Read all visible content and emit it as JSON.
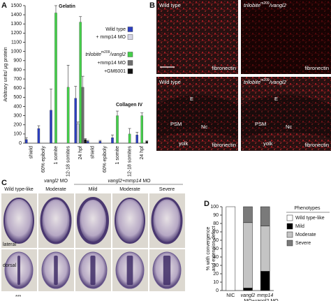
{
  "panel_letters": [
    "A",
    "B",
    "C",
    "D"
  ],
  "chart_data": [
    {
      "type": "bar",
      "stacked": false,
      "annotations": [
        "Gelatin",
        "Collagen IV"
      ],
      "y_label": "Arbitrary units/ μg protein",
      "categories": [
        "shield",
        "60% epiboly",
        "1 somite",
        "12-18 somites",
        "24 hpf",
        "shield",
        "60% epiboly",
        "1 somite",
        "12-18 somites",
        "24 hpf"
      ],
      "series": [
        {
          "name": [
            "Wild type"
          ],
          "color": "#2c3fc0",
          "values": [
            40,
            160,
            360,
            null,
            490,
            20,
            20,
            60,
            null,
            90
          ],
          "errors": [
            20,
            30,
            230,
            null,
            130,
            10,
            10,
            30,
            null,
            30
          ]
        },
        {
          "name": [
            "+ mmp14 MO"
          ],
          "color": "#d6d6e6",
          "values": [
            null,
            null,
            null,
            null,
            210,
            null,
            null,
            null,
            null,
            null
          ],
          "errors": [
            null,
            null,
            null,
            null,
            20,
            null,
            null,
            null,
            null,
            null
          ]
        },
        {
          "name": [
            "trilobite",
            "m209",
            "/vangl2"
          ],
          "color": "#45d04b",
          "values": [
            null,
            null,
            1420,
            610,
            1320,
            null,
            null,
            300,
            100,
            300
          ],
          "errors": [
            null,
            null,
            80,
            240,
            60,
            null,
            null,
            50,
            60,
            30
          ]
        },
        {
          "name": [
            "+mmp14 MO"
          ],
          "color": "#6e6e6e",
          "values": [
            null,
            null,
            null,
            null,
            610,
            null,
            null,
            null,
            null,
            null
          ],
          "errors": [
            null,
            null,
            null,
            null,
            120,
            null,
            null,
            null,
            null,
            null
          ]
        },
        {
          "name": [
            "+GM6001"
          ],
          "color": "#111111",
          "values": [
            null,
            null,
            null,
            null,
            40,
            null,
            null,
            null,
            null,
            20
          ],
          "errors": [
            null,
            null,
            null,
            null,
            10,
            null,
            null,
            null,
            null,
            5
          ]
        }
      ],
      "ylim": [
        0,
        1500
      ],
      "yticks": [
        0,
        100,
        200,
        300,
        400,
        500,
        600,
        700,
        800,
        900,
        1000,
        1100,
        1200,
        1300,
        1400,
        1500
      ]
    },
    {
      "type": "bar",
      "stacked": true,
      "y_label": [
        "% with convergence",
        "and extension defect"
      ],
      "categories": [
        [
          "NIC"
        ],
        [
          "vangl2",
          "MO"
        ],
        [
          "mmp14",
          "+vangl2 MO"
        ]
      ],
      "legend_title": "Phenotypes",
      "series": [
        {
          "name": [
            "Wild type-like"
          ],
          "color": "#ffffff",
          "values": [
            100,
            null,
            null
          ]
        },
        {
          "name": [
            "Mild"
          ],
          "color": "#000000",
          "values": [
            null,
            3,
            23
          ]
        },
        {
          "name": [
            "Moderate"
          ],
          "color": "#c4c4c4",
          "values": [
            null,
            78,
            54
          ]
        },
        {
          "name": [
            "Severe"
          ],
          "color": "#7a7a7a",
          "values": [
            null,
            19,
            23
          ]
        }
      ],
      "ylim": [
        0,
        100
      ],
      "yticks": [
        0,
        10,
        20,
        30,
        40,
        50,
        60,
        70,
        80,
        90,
        100
      ]
    }
  ],
  "panel_b": {
    "images": [
      {
        "title": [
          "Wild type"
        ],
        "stain": "fibronectin"
      },
      {
        "title": [
          "trilobite",
          "m209",
          "/vangl2"
        ],
        "stain": "fibronectin"
      },
      {
        "title": [
          "Wild type"
        ],
        "stain": "fibronectin",
        "labels": [
          "E",
          "PSM",
          "Nc",
          "yolk"
        ]
      },
      {
        "title": [
          "trilobite",
          "m209",
          "/vangl2"
        ],
        "stain": "fibronectin",
        "labels": [
          "E",
          "PSM",
          "Nc",
          "yolk"
        ]
      }
    ]
  },
  "panel_c": {
    "group_headers": [
      [
        "vangl2",
        " MO"
      ],
      [
        "vangl2+mmp14",
        " MO"
      ]
    ],
    "columns": [
      "Wild type-like",
      "Moderate",
      "Mild",
      "Moderate",
      "Severe"
    ],
    "rows": [
      "lateral",
      "dorsal"
    ]
  },
  "footnote": "***"
}
